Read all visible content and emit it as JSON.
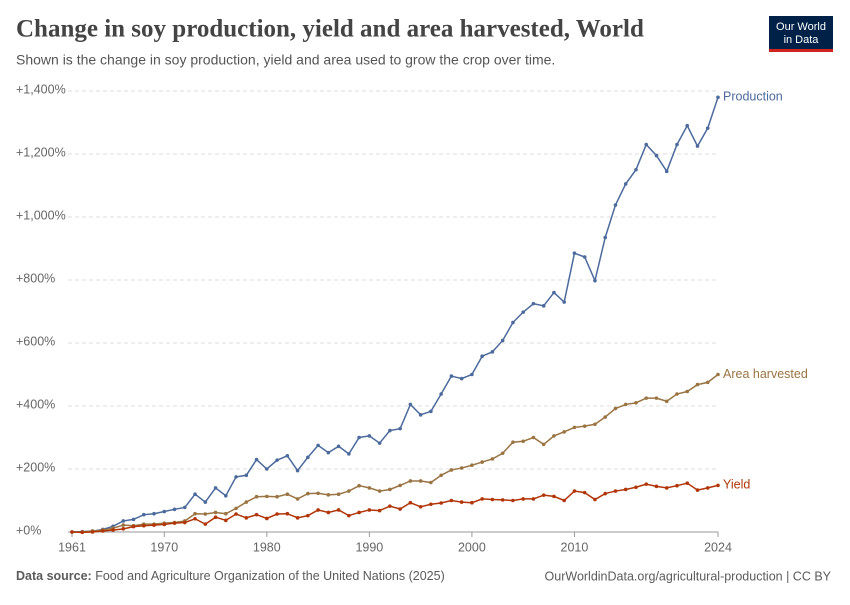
{
  "chart_data": {
    "type": "line",
    "title": "Change in soy production, yield and area harvested, World",
    "subtitle": "Shown is the change in soy production, yield and area used to grow the crop over time.",
    "logo": [
      "Our World",
      "in Data"
    ],
    "source_label": "Data source:",
    "source": "Food and Agriculture Organization of the United Nations (2025)",
    "credit": "OurWorldinData.org/agricultural-production | CC BY",
    "x": [
      1961,
      1962,
      1963,
      1964,
      1965,
      1966,
      1967,
      1968,
      1969,
      1970,
      1971,
      1972,
      1973,
      1974,
      1975,
      1976,
      1977,
      1978,
      1979,
      1980,
      1981,
      1982,
      1983,
      1984,
      1985,
      1986,
      1987,
      1988,
      1989,
      1990,
      1991,
      1992,
      1993,
      1994,
      1995,
      1996,
      1997,
      1998,
      1999,
      2000,
      2001,
      2002,
      2003,
      2004,
      2005,
      2006,
      2007,
      2008,
      2009,
      2010,
      2011,
      2012,
      2013,
      2014,
      2015,
      2016,
      2017,
      2018,
      2019,
      2020,
      2021,
      2022,
      2023,
      2024
    ],
    "series": [
      {
        "name": "Production",
        "color": "#4c6a9c",
        "values": [
          0,
          1,
          3,
          8,
          18,
          35,
          40,
          55,
          58,
          65,
          72,
          78,
          120,
          95,
          140,
          115,
          175,
          180,
          230,
          200,
          228,
          242,
          195,
          237,
          275,
          252,
          272,
          248,
          300,
          305,
          282,
          322,
          328,
          405,
          372,
          383,
          438,
          495,
          487,
          500,
          558,
          572,
          608,
          665,
          698,
          725,
          718,
          760,
          730,
          885,
          873,
          798,
          935,
          1038,
          1105,
          1150,
          1230,
          1195,
          1145,
          1230,
          1290,
          1225,
          1282,
          1380
        ]
      },
      {
        "name": "Area harvested",
        "color": "#9a7442",
        "values": [
          0,
          0,
          3,
          6,
          12,
          22,
          20,
          25,
          25,
          28,
          30,
          35,
          58,
          57,
          62,
          58,
          75,
          95,
          112,
          113,
          112,
          120,
          105,
          122,
          123,
          118,
          120,
          130,
          147,
          140,
          130,
          135,
          148,
          162,
          162,
          157,
          180,
          197,
          203,
          212,
          222,
          232,
          250,
          285,
          288,
          300,
          278,
          305,
          318,
          332,
          336,
          342,
          365,
          392,
          405,
          410,
          425,
          425,
          415,
          438,
          446,
          468,
          475,
          500
        ]
      },
      {
        "name": "Yield",
        "color": "#b13507",
        "values": [
          0,
          -1,
          0,
          3,
          6,
          10,
          17,
          20,
          22,
          24,
          28,
          30,
          42,
          25,
          47,
          37,
          57,
          45,
          55,
          43,
          57,
          58,
          45,
          52,
          70,
          62,
          70,
          52,
          62,
          70,
          68,
          82,
          73,
          93,
          80,
          88,
          92,
          100,
          95,
          93,
          105,
          103,
          102,
          100,
          105,
          105,
          117,
          113,
          100,
          130,
          125,
          103,
          122,
          130,
          135,
          142,
          152,
          145,
          140,
          147,
          155,
          133,
          140,
          148
        ]
      }
    ],
    "xlim": [
      1961,
      2024
    ],
    "xticks": [
      1961,
      1970,
      1980,
      1990,
      2000,
      2010,
      2024
    ],
    "ylim": [
      0,
      1400
    ],
    "yticks": [
      {
        "value": 0,
        "label": "+0%"
      },
      {
        "value": 200,
        "label": "+200%"
      },
      {
        "value": 400,
        "label": "+400%"
      },
      {
        "value": 600,
        "label": "+600%"
      },
      {
        "value": 800,
        "label": "+800%"
      },
      {
        "value": 1000,
        "label": "+1,000%"
      },
      {
        "value": 1200,
        "label": "+1,200%"
      },
      {
        "value": 1400,
        "label": "+1,400%"
      }
    ],
    "grid": true
  }
}
